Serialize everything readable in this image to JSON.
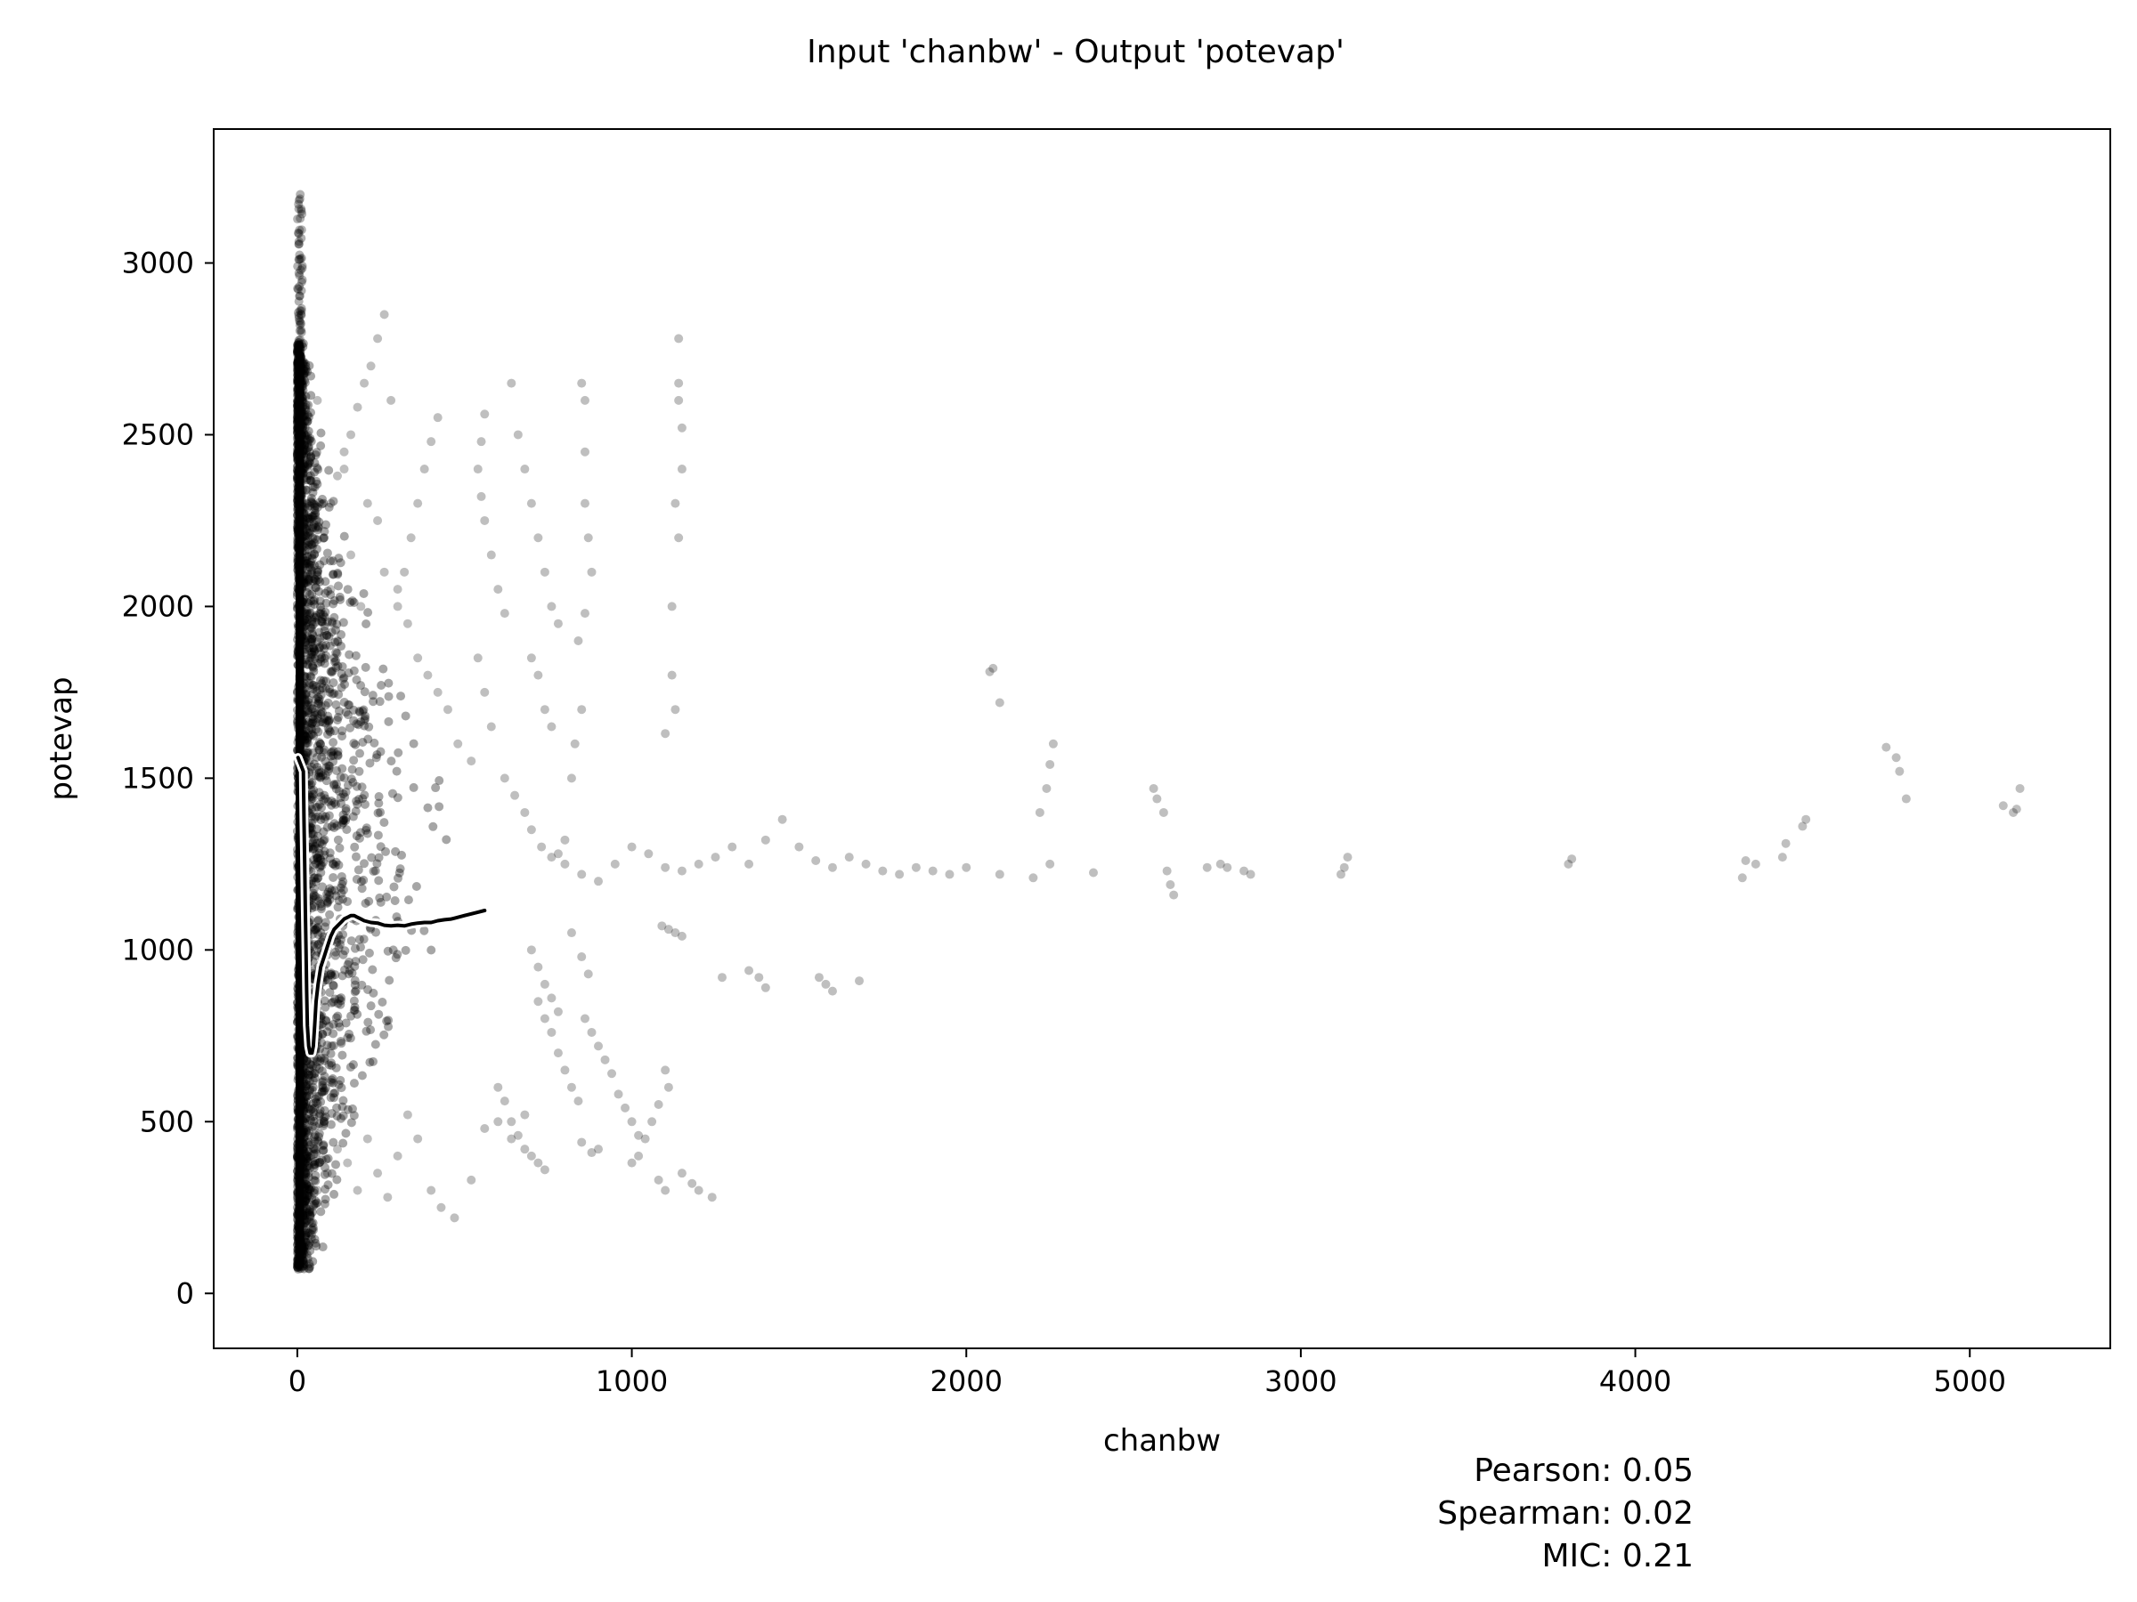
{
  "chart_data": {
    "type": "scatter",
    "title": "Input 'chanbw' - Output 'potevap'",
    "xlabel": "chanbw",
    "ylabel": "potevap",
    "xlim": [
      -250,
      5420
    ],
    "ylim": [
      -160,
      3390
    ],
    "xticks": [
      0,
      1000,
      2000,
      3000,
      4000,
      5000
    ],
    "yticks": [
      0,
      500,
      1000,
      1500,
      2000,
      2500,
      3000
    ],
    "grid": false,
    "marker_color": "#000000",
    "marker_alpha": 0.25,
    "trend_color": "#000000",
    "trend_outline_color": "#ffffff",
    "stats": [
      {
        "label": "Pearson",
        "value": "0.05"
      },
      {
        "label": "Spearman",
        "value": "0.02"
      },
      {
        "label": "MIC",
        "value": "0.21"
      }
    ],
    "series": [
      {
        "points": [
          [
            30,
            2500
          ],
          [
            45,
            2300
          ],
          [
            60,
            2600
          ],
          [
            80,
            2200
          ],
          [
            100,
            2050
          ],
          [
            120,
            1900
          ],
          [
            140,
            2400
          ],
          [
            160,
            2150
          ],
          [
            190,
            2000
          ],
          [
            210,
            2300
          ],
          [
            240,
            2250
          ],
          [
            260,
            2100
          ],
          [
            300,
            2050
          ],
          [
            330,
            1950
          ],
          [
            360,
            1850
          ],
          [
            390,
            1800
          ],
          [
            420,
            1750
          ],
          [
            450,
            1700
          ],
          [
            480,
            1600
          ],
          [
            520,
            1550
          ],
          [
            40,
            400
          ],
          [
            60,
            300
          ],
          [
            90,
            350
          ],
          [
            120,
            420
          ],
          [
            150,
            380
          ],
          [
            180,
            300
          ],
          [
            210,
            450
          ],
          [
            240,
            350
          ],
          [
            270,
            280
          ],
          [
            300,
            400
          ],
          [
            330,
            520
          ],
          [
            360,
            450
          ],
          [
            400,
            300
          ],
          [
            430,
            250
          ],
          [
            470,
            220
          ],
          [
            520,
            330
          ],
          [
            560,
            480
          ],
          [
            600,
            500
          ],
          [
            640,
            450
          ],
          [
            680,
            520
          ],
          [
            540,
            1850
          ],
          [
            560,
            1750
          ],
          [
            580,
            1650
          ],
          [
            620,
            1500
          ],
          [
            650,
            1450
          ],
          [
            680,
            1400
          ],
          [
            700,
            1350
          ],
          [
            730,
            1300
          ],
          [
            760,
            1270
          ],
          [
            800,
            1250
          ],
          [
            850,
            1220
          ],
          [
            900,
            1200
          ],
          [
            950,
            1250
          ],
          [
            1000,
            1300
          ],
          [
            1050,
            1280
          ],
          [
            1100,
            1240
          ],
          [
            1150,
            1230
          ],
          [
            1200,
            1250
          ],
          [
            1250,
            1270
          ],
          [
            1300,
            1300
          ],
          [
            1350,
            1250
          ],
          [
            1400,
            1320
          ],
          [
            1450,
            1380
          ],
          [
            1500,
            1300
          ],
          [
            1550,
            1260
          ],
          [
            1600,
            1240
          ],
          [
            1650,
            1270
          ],
          [
            1700,
            1250
          ],
          [
            1750,
            1230
          ],
          [
            1800,
            1220
          ],
          [
            1850,
            1240
          ],
          [
            1900,
            1230
          ],
          [
            1950,
            1220
          ],
          [
            2000,
            1240
          ],
          [
            2100,
            1220
          ],
          [
            2200,
            1210
          ],
          [
            2250,
            1250
          ],
          [
            2380,
            1225
          ],
          [
            2720,
            1240
          ],
          [
            2760,
            1250
          ],
          [
            2780,
            1240
          ],
          [
            2830,
            1230
          ],
          [
            2850,
            1220
          ],
          [
            3120,
            1220
          ],
          [
            3130,
            1240
          ],
          [
            3140,
            1270
          ],
          [
            3800,
            1250
          ],
          [
            3810,
            1265
          ],
          [
            4320,
            1210
          ],
          [
            4330,
            1260
          ],
          [
            4360,
            1250
          ],
          [
            4440,
            1270
          ],
          [
            4450,
            1310
          ],
          [
            4500,
            1360
          ],
          [
            4510,
            1380
          ],
          [
            4750,
            1590
          ],
          [
            4780,
            1560
          ],
          [
            4790,
            1520
          ],
          [
            4810,
            1440
          ],
          [
            5100,
            1420
          ],
          [
            5130,
            1400
          ],
          [
            5140,
            1410
          ],
          [
            5150,
            1470
          ],
          [
            2560,
            1470
          ],
          [
            2570,
            1440
          ],
          [
            2590,
            1400
          ],
          [
            2600,
            1230
          ],
          [
            2610,
            1190
          ],
          [
            2620,
            1160
          ],
          [
            2070,
            1810
          ],
          [
            2080,
            1820
          ],
          [
            2100,
            1720
          ],
          [
            2220,
            1400
          ],
          [
            2240,
            1470
          ],
          [
            2250,
            1540
          ],
          [
            2260,
            1600
          ],
          [
            1560,
            920
          ],
          [
            1580,
            900
          ],
          [
            1600,
            880
          ],
          [
            1680,
            910
          ],
          [
            1270,
            920
          ],
          [
            1350,
            940
          ],
          [
            1380,
            920
          ],
          [
            1400,
            890
          ],
          [
            1100,
            1630
          ],
          [
            1120,
            2000
          ],
          [
            1120,
            1800
          ],
          [
            1130,
            1700
          ],
          [
            1140,
            2780
          ],
          [
            1140,
            2650
          ],
          [
            1140,
            2600
          ],
          [
            1150,
            2520
          ],
          [
            1150,
            2400
          ],
          [
            1130,
            2300
          ],
          [
            1140,
            2200
          ],
          [
            1090,
            1070
          ],
          [
            1110,
            1060
          ],
          [
            1130,
            1050
          ],
          [
            1150,
            1040
          ],
          [
            1100,
            650
          ],
          [
            1110,
            600
          ],
          [
            1080,
            550
          ],
          [
            1060,
            500
          ],
          [
            1040,
            450
          ],
          [
            1020,
            400
          ],
          [
            1000,
            380
          ],
          [
            1080,
            330
          ],
          [
            1100,
            300
          ],
          [
            1150,
            350
          ],
          [
            1180,
            320
          ],
          [
            1200,
            300
          ],
          [
            1240,
            280
          ],
          [
            850,
            2650
          ],
          [
            860,
            2600
          ],
          [
            860,
            2450
          ],
          [
            860,
            2300
          ],
          [
            870,
            2200
          ],
          [
            880,
            2100
          ],
          [
            860,
            1980
          ],
          [
            840,
            1900
          ],
          [
            850,
            1700
          ],
          [
            830,
            1600
          ],
          [
            820,
            1500
          ],
          [
            800,
            1320
          ],
          [
            780,
            1280
          ],
          [
            820,
            1050
          ],
          [
            850,
            980
          ],
          [
            870,
            930
          ],
          [
            860,
            800
          ],
          [
            880,
            760
          ],
          [
            900,
            720
          ],
          [
            920,
            680
          ],
          [
            940,
            640
          ],
          [
            960,
            580
          ],
          [
            980,
            540
          ],
          [
            1000,
            500
          ],
          [
            1020,
            460
          ],
          [
            850,
            440
          ],
          [
            880,
            410
          ],
          [
            900,
            420
          ],
          [
            640,
            2650
          ],
          [
            660,
            2500
          ],
          [
            680,
            2400
          ],
          [
            700,
            2300
          ],
          [
            720,
            2200
          ],
          [
            740,
            2100
          ],
          [
            760,
            2000
          ],
          [
            780,
            1950
          ],
          [
            700,
            1850
          ],
          [
            720,
            1800
          ],
          [
            740,
            1700
          ],
          [
            760,
            1650
          ],
          [
            560,
            2560
          ],
          [
            550,
            2480
          ],
          [
            540,
            2400
          ],
          [
            550,
            2320
          ],
          [
            560,
            2250
          ],
          [
            580,
            2150
          ],
          [
            600,
            2050
          ],
          [
            620,
            1980
          ],
          [
            720,
            850
          ],
          [
            740,
            800
          ],
          [
            760,
            760
          ],
          [
            780,
            700
          ],
          [
            800,
            650
          ],
          [
            820,
            600
          ],
          [
            840,
            560
          ],
          [
            700,
            1000
          ],
          [
            720,
            950
          ],
          [
            740,
            900
          ],
          [
            760,
            860
          ],
          [
            780,
            820
          ],
          [
            600,
            600
          ],
          [
            620,
            560
          ],
          [
            640,
            500
          ],
          [
            660,
            460
          ],
          [
            680,
            420
          ],
          [
            700,
            400
          ],
          [
            720,
            380
          ],
          [
            740,
            360
          ],
          [
            420,
            2550
          ],
          [
            400,
            2480
          ],
          [
            380,
            2400
          ],
          [
            360,
            2300
          ],
          [
            340,
            2200
          ],
          [
            320,
            2100
          ],
          [
            300,
            2000
          ],
          [
            280,
            2600
          ],
          [
            260,
            2850
          ],
          [
            240,
            2780
          ],
          [
            220,
            2700
          ],
          [
            200,
            2650
          ],
          [
            180,
            2580
          ],
          [
            160,
            2500
          ],
          [
            140,
            2450
          ],
          [
            120,
            2380
          ],
          [
            100,
            2300
          ],
          [
            80,
            2200
          ],
          [
            60,
            2100
          ],
          [
            40,
            2000
          ]
        ]
      }
    ],
    "trend_line": [
      [
        2,
        1560
      ],
      [
        6,
        1550
      ],
      [
        10,
        1540
      ],
      [
        14,
        1530
      ],
      [
        18,
        1520
      ],
      [
        20,
        1380
      ],
      [
        22,
        1250
      ],
      [
        24,
        1120
      ],
      [
        26,
        1000
      ],
      [
        28,
        880
      ],
      [
        30,
        780
      ],
      [
        34,
        720
      ],
      [
        38,
        700
      ],
      [
        44,
        700
      ],
      [
        48,
        720
      ],
      [
        52,
        780
      ],
      [
        56,
        850
      ],
      [
        62,
        900
      ],
      [
        70,
        950
      ],
      [
        80,
        980
      ],
      [
        90,
        1010
      ],
      [
        100,
        1040
      ],
      [
        110,
        1060
      ],
      [
        120,
        1070
      ],
      [
        130,
        1080
      ],
      [
        140,
        1090
      ],
      [
        150,
        1095
      ],
      [
        160,
        1100
      ],
      [
        170,
        1100
      ],
      [
        180,
        1095
      ],
      [
        190,
        1090
      ],
      [
        200,
        1085
      ],
      [
        220,
        1080
      ],
      [
        240,
        1078
      ],
      [
        260,
        1072
      ],
      [
        280,
        1070
      ],
      [
        300,
        1072
      ],
      [
        320,
        1070
      ],
      [
        340,
        1075
      ],
      [
        360,
        1078
      ],
      [
        380,
        1080
      ],
      [
        400,
        1080
      ],
      [
        420,
        1085
      ],
      [
        440,
        1088
      ],
      [
        460,
        1090
      ],
      [
        480,
        1095
      ],
      [
        500,
        1100
      ],
      [
        520,
        1105
      ],
      [
        540,
        1110
      ],
      [
        560,
        1115
      ]
    ]
  }
}
